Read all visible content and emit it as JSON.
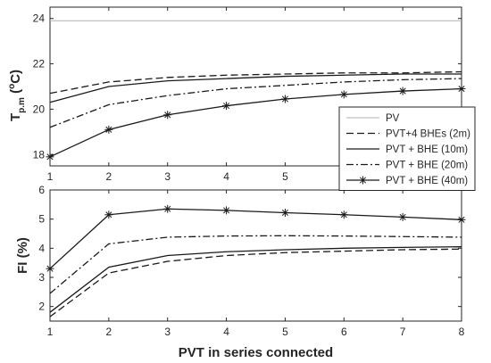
{
  "chart_data": [
    {
      "type": "line",
      "ylabel_main": "T",
      "ylabel_sub": "p.m",
      "ylabel_unit": " (",
      "ylabel_deg": "o",
      "ylabel_close": "C)",
      "x": [
        1,
        2,
        3,
        4,
        5,
        6,
        7,
        8
      ],
      "xlim": [
        1,
        8
      ],
      "ylim": [
        17.5,
        24.5
      ],
      "yticks": [
        18,
        20,
        22,
        24
      ],
      "xticks": [
        1,
        2,
        3,
        4,
        5,
        6,
        7,
        8
      ],
      "grid": false,
      "series": [
        {
          "name": "PV",
          "style": "solid-gray",
          "values": [
            23.9,
            23.9,
            23.9,
            23.9,
            23.9,
            23.9,
            23.9,
            23.9
          ]
        },
        {
          "name": "PVT+4 BHEs (2m)",
          "style": "dashed",
          "values": [
            20.7,
            21.2,
            21.4,
            21.5,
            21.55,
            21.6,
            21.6,
            21.65
          ]
        },
        {
          "name": "PVT + BHE (10m)",
          "style": "solid",
          "values": [
            20.3,
            21.0,
            21.25,
            21.35,
            21.45,
            21.5,
            21.55,
            21.55
          ]
        },
        {
          "name": "PVT + BHE (20m)",
          "style": "dashdot",
          "values": [
            19.2,
            20.2,
            20.6,
            20.9,
            21.05,
            21.2,
            21.3,
            21.35
          ]
        },
        {
          "name": "PVT + BHE (40m)",
          "style": "solid-star",
          "values": [
            17.9,
            19.1,
            19.75,
            20.15,
            20.45,
            20.65,
            20.8,
            20.9
          ]
        }
      ],
      "legend_placement": "lower-right"
    },
    {
      "type": "line",
      "ylabel": "FI (%)",
      "xlabel": "PVT in series connected",
      "x": [
        1,
        2,
        3,
        4,
        5,
        6,
        7,
        8
      ],
      "xlim": [
        1,
        8
      ],
      "ylim": [
        1.5,
        6
      ],
      "yticks": [
        2,
        3,
        4,
        5,
        6
      ],
      "xticks": [
        1,
        2,
        3,
        4,
        5,
        6,
        7,
        8
      ],
      "grid": false,
      "series": [
        {
          "name": "PVT+4 BHEs (2m)",
          "style": "dashed",
          "values": [
            1.65,
            3.15,
            3.55,
            3.75,
            3.85,
            3.9,
            3.95,
            3.97
          ]
        },
        {
          "name": "PVT + BHE (10m)",
          "style": "solid",
          "values": [
            1.8,
            3.35,
            3.75,
            3.88,
            3.95,
            4.0,
            4.03,
            4.05
          ]
        },
        {
          "name": "PVT + BHE (20m)",
          "style": "dashdot",
          "values": [
            2.45,
            4.15,
            4.38,
            4.42,
            4.43,
            4.42,
            4.4,
            4.38
          ]
        },
        {
          "name": "PVT + BHE (40m)",
          "style": "solid-star",
          "values": [
            3.3,
            5.15,
            5.35,
            5.3,
            5.22,
            5.15,
            5.07,
            4.98
          ]
        }
      ]
    }
  ],
  "colors": {
    "axis": "#262626",
    "line": "#1a1a1a",
    "pv_line": "#b0b0b0",
    "background": "#ffffff"
  }
}
